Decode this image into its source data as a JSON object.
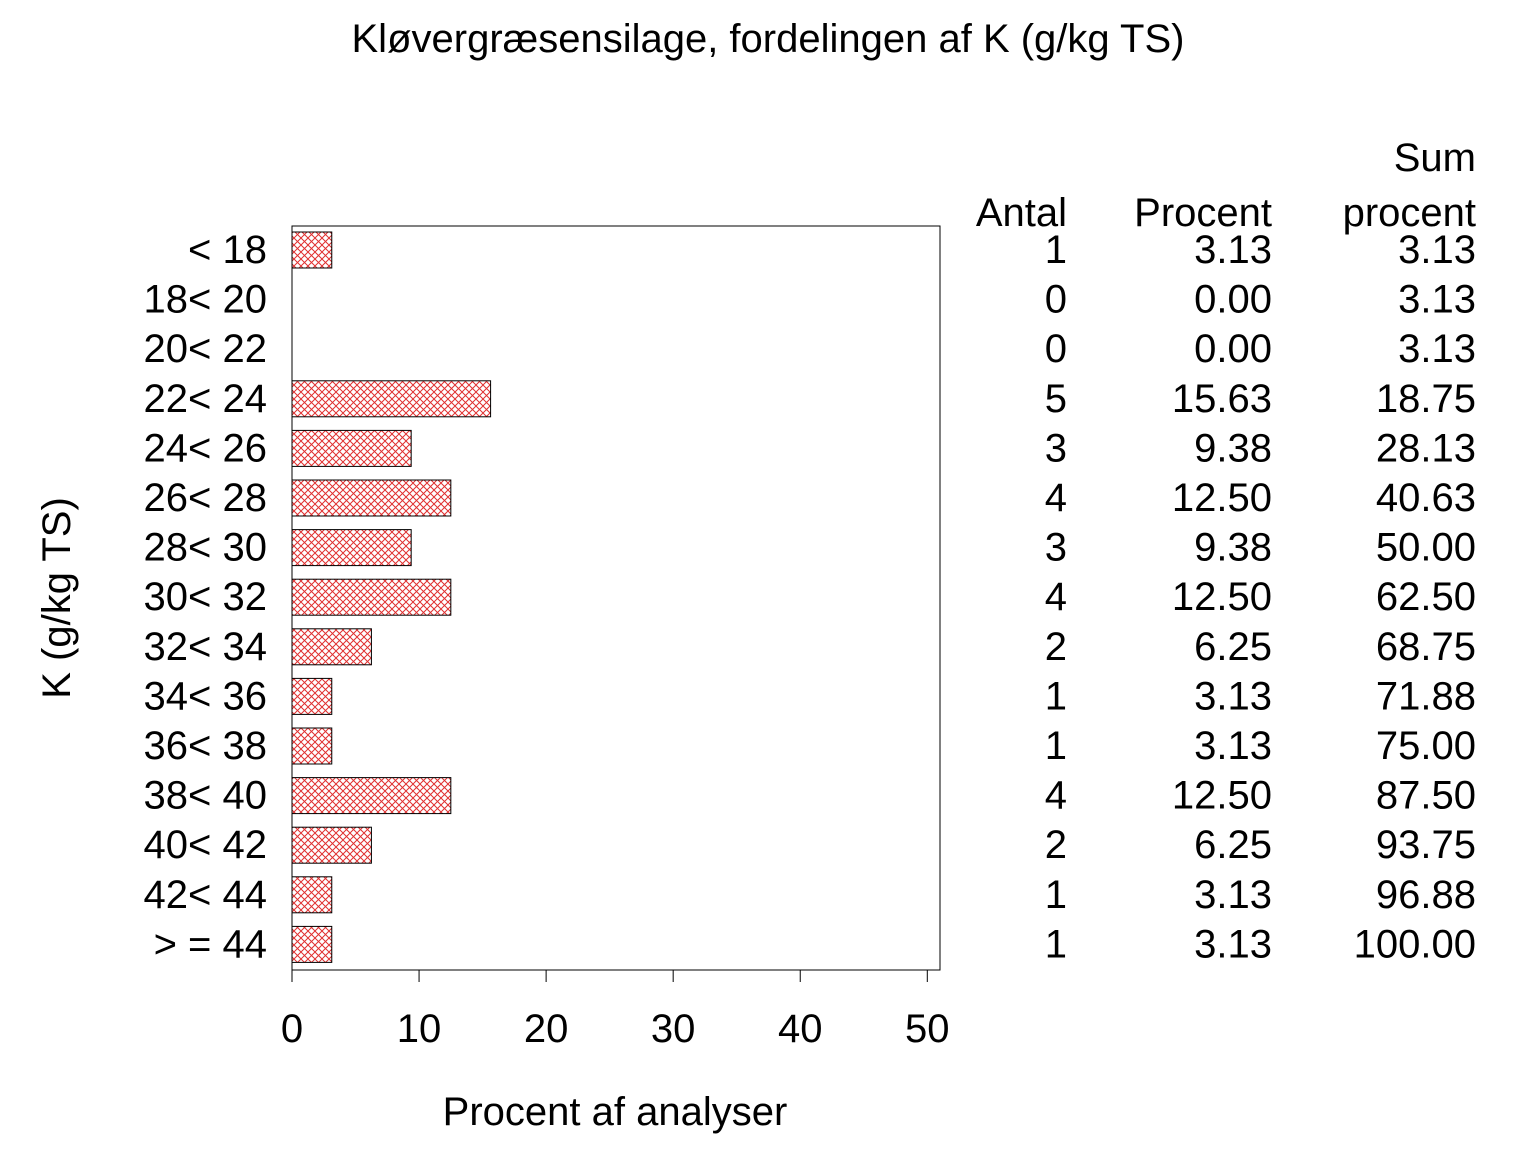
{
  "chart_data": {
    "type": "bar",
    "orientation": "horizontal",
    "title": "Kløvergræsensilage, fordelingen af K (g/kg TS)",
    "xlabel": "Procent af analyser",
    "ylabel": "K (g/kg TS)",
    "xlim": [
      0,
      51
    ],
    "xticks": [
      "0",
      "10",
      "20",
      "30",
      "40",
      "50"
    ],
    "xtick_values": [
      0,
      10,
      20,
      30,
      40,
      50
    ],
    "bar_color": "#e03030",
    "bar_pattern": "crosshatch",
    "categories": [
      "< 18",
      "18< 20",
      "20< 22",
      "22< 24",
      "24< 26",
      "26< 28",
      "28< 30",
      "30< 32",
      "32< 34",
      "34< 36",
      "36< 38",
      "38< 40",
      "40< 42",
      "42< 44",
      "> = 44"
    ],
    "values": [
      3.13,
      0.0,
      0.0,
      15.63,
      9.38,
      12.5,
      9.38,
      12.5,
      6.25,
      3.13,
      3.13,
      12.5,
      6.25,
      3.13,
      3.13
    ],
    "table": {
      "headers": {
        "antal": "Antal",
        "procent": "Procent",
        "sum_line1": "Sum",
        "sum_line2": "procent"
      },
      "antal": [
        "1",
        "0",
        "0",
        "5",
        "3",
        "4",
        "3",
        "4",
        "2",
        "1",
        "1",
        "4",
        "2",
        "1",
        "1"
      ],
      "procent": [
        "3.13",
        "0.00",
        "0.00",
        "15.63",
        "9.38",
        "12.50",
        "9.38",
        "12.50",
        "6.25",
        "3.13",
        "3.13",
        "12.50",
        "6.25",
        "3.13",
        "3.13"
      ],
      "sum_procent": [
        "3.13",
        "3.13",
        "3.13",
        "18.75",
        "28.13",
        "40.63",
        "50.00",
        "62.50",
        "68.75",
        "71.88",
        "75.00",
        "87.50",
        "93.75",
        "96.88",
        "100.00"
      ]
    }
  }
}
